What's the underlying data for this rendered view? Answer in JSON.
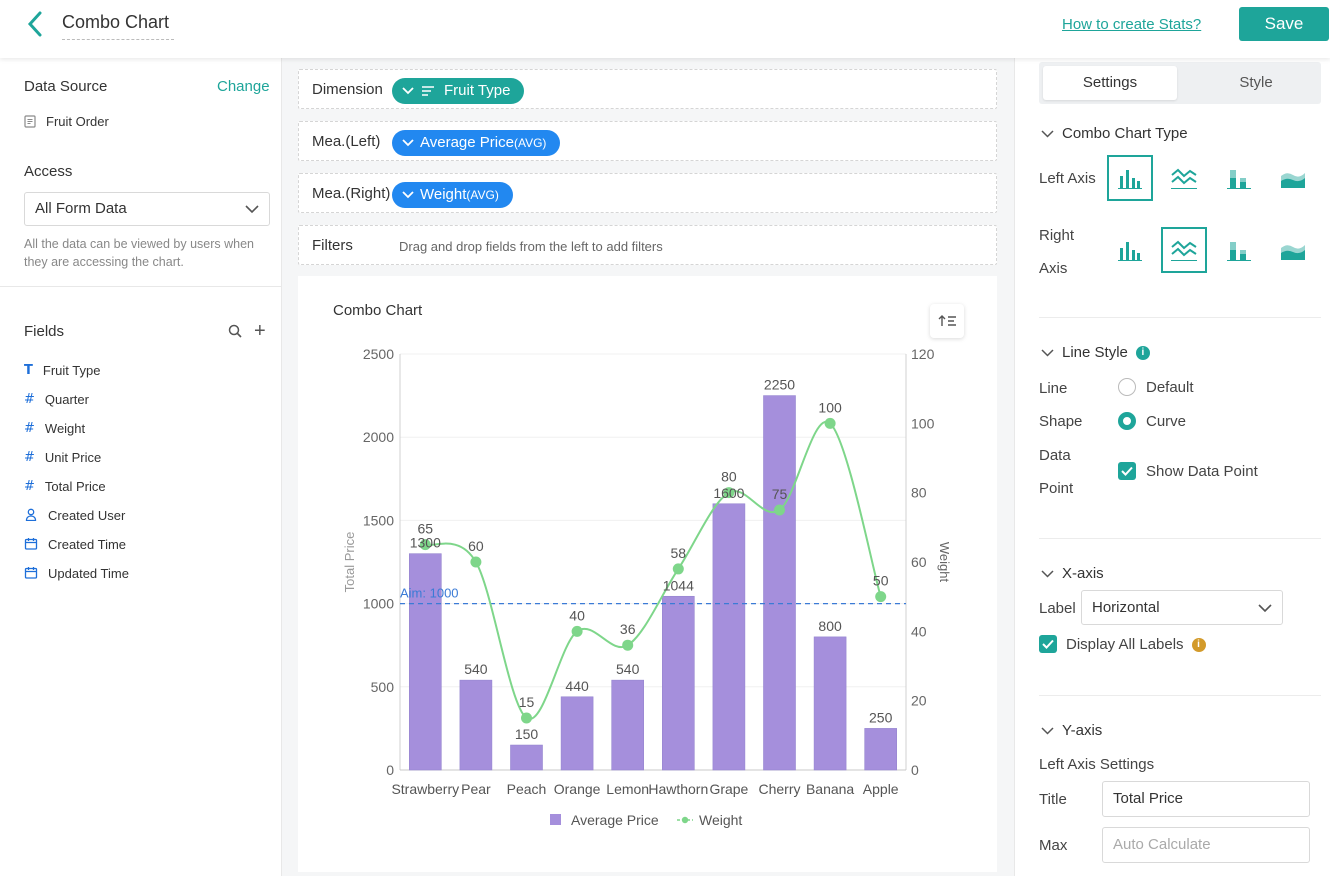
{
  "topbar": {
    "title": "Combo Chart",
    "help_link": "How to create Stats?",
    "save_label": "Save"
  },
  "left": {
    "data_source_title": "Data Source",
    "change_label": "Change",
    "data_source_item": "Fruit Order",
    "access_title": "Access",
    "access_value": "All Form Data",
    "access_hint": "All the data can be viewed by users when they are accessing the chart.",
    "fields_title": "Fields",
    "fields": [
      {
        "label": "Fruit Type",
        "type": "T"
      },
      {
        "label": "Quarter",
        "type": "#"
      },
      {
        "label": "Weight",
        "type": "#"
      },
      {
        "label": "Unit Price",
        "type": "#"
      },
      {
        "label": "Total Price",
        "type": "#"
      },
      {
        "label": "Created User",
        "type": "user"
      },
      {
        "label": "Created Time",
        "type": "date"
      },
      {
        "label": "Updated Time",
        "type": "date"
      }
    ]
  },
  "slots": {
    "dimension_label": "Dimension",
    "dimension_pill": "Fruit Type",
    "left_label": "Mea.(Left)",
    "left_pill": "Average Price",
    "left_pill_agg": "(AVG)",
    "right_label": "Mea.(Right)",
    "right_pill": "Weight",
    "right_pill_agg": "(AVG)",
    "filters_label": "Filters",
    "filters_hint": "Drag and drop fields from the left to add filters"
  },
  "chart_title": "Combo Chart",
  "chart_data": {
    "type": "bar",
    "categories": [
      "Strawberry",
      "Pear",
      "Peach",
      "Orange",
      "Lemon",
      "Hawthorn",
      "Grape",
      "Cherry",
      "Banana",
      "Apple"
    ],
    "series": [
      {
        "name": "Average Price",
        "type": "bar",
        "axis": "left",
        "values": [
          1300,
          540,
          150,
          440,
          540,
          1044,
          1600,
          2250,
          800,
          250
        ]
      },
      {
        "name": "Weight",
        "type": "line",
        "axis": "right",
        "values": [
          65,
          60,
          15,
          40,
          36,
          58,
          80,
          75,
          100,
          50
        ]
      }
    ],
    "ylabel": "Total Price",
    "y2label": "Weight",
    "ylim": [
      0,
      2500
    ],
    "y2lim": [
      0,
      120
    ],
    "yticks": [
      "0",
      "500",
      "1000",
      "1500",
      "2000",
      "2500"
    ],
    "y2ticks": [
      "0",
      "20",
      "40",
      "60",
      "80",
      "100",
      "120"
    ],
    "aim_line": {
      "label": "Aim: 1000",
      "value": 1000
    },
    "legend_position": "bottom",
    "colors": {
      "bar": "#a58fdc",
      "line": "#7ed68a",
      "aim": "#3b7bd6"
    }
  },
  "right": {
    "tab_settings": "Settings",
    "tab_style": "Style",
    "combo_type_title": "Combo Chart Type",
    "left_axis_label": "Left Axis",
    "right_axis_label_1": "Right",
    "right_axis_label_2": "Axis",
    "line_style_title": "Line Style",
    "line_label": "Line",
    "shape_label": "Shape",
    "data_label": "Data",
    "point_label": "Point",
    "opt_default": "Default",
    "opt_curve": "Curve",
    "show_data_point": "Show Data Point",
    "xaxis_title": "X-axis",
    "label_label": "Label",
    "label_value": "Horizontal",
    "display_all_labels": "Display All Labels",
    "yaxis_title": "Y-axis",
    "left_axis_settings": "Left Axis Settings",
    "title_label": "Title",
    "title_value": "Total Price",
    "max_label": "Max",
    "max_placeholder": "Auto Calculate"
  },
  "colors": {
    "accent": "#1ea59a",
    "blue_pill": "#2288f0"
  }
}
